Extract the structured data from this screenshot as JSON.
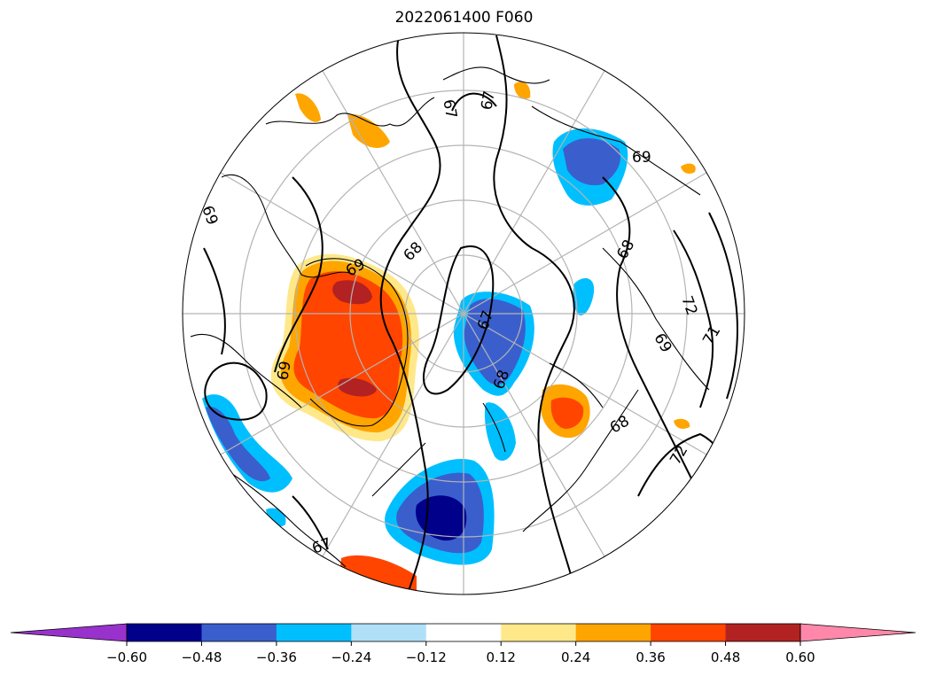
{
  "title": "2022061400 F060",
  "projection": "north-polar-stereographic",
  "colors": {
    "land_outline": "#000000",
    "grid": "#b4b4b4",
    "contour": "#000000"
  },
  "contour_labels": [
    "67",
    "67",
    "69",
    "69",
    "68",
    "69",
    "67",
    "68",
    "72",
    "71",
    "72",
    "69",
    "68",
    "67",
    "69",
    "68"
  ],
  "colorbar": {
    "under_color": "#9932cc",
    "over_color": "#ff88aa",
    "bins": [
      {
        "color": "#00008b"
      },
      {
        "color": "#3a5fcd"
      },
      {
        "color": "#00bfff"
      },
      {
        "color": "#b0e0f8"
      },
      {
        "color": "#ffffff"
      },
      {
        "color": "#ffe88a"
      },
      {
        "color": "#ffa500"
      },
      {
        "color": "#ff4500"
      },
      {
        "color": "#b22222"
      },
      {
        "color": "#ff88aa"
      }
    ],
    "tick_labels": [
      "−0.60",
      "−0.48",
      "−0.36",
      "−0.24",
      "−0.12",
      "0.12",
      "0.24",
      "0.36",
      "0.48",
      "0.60"
    ]
  }
}
